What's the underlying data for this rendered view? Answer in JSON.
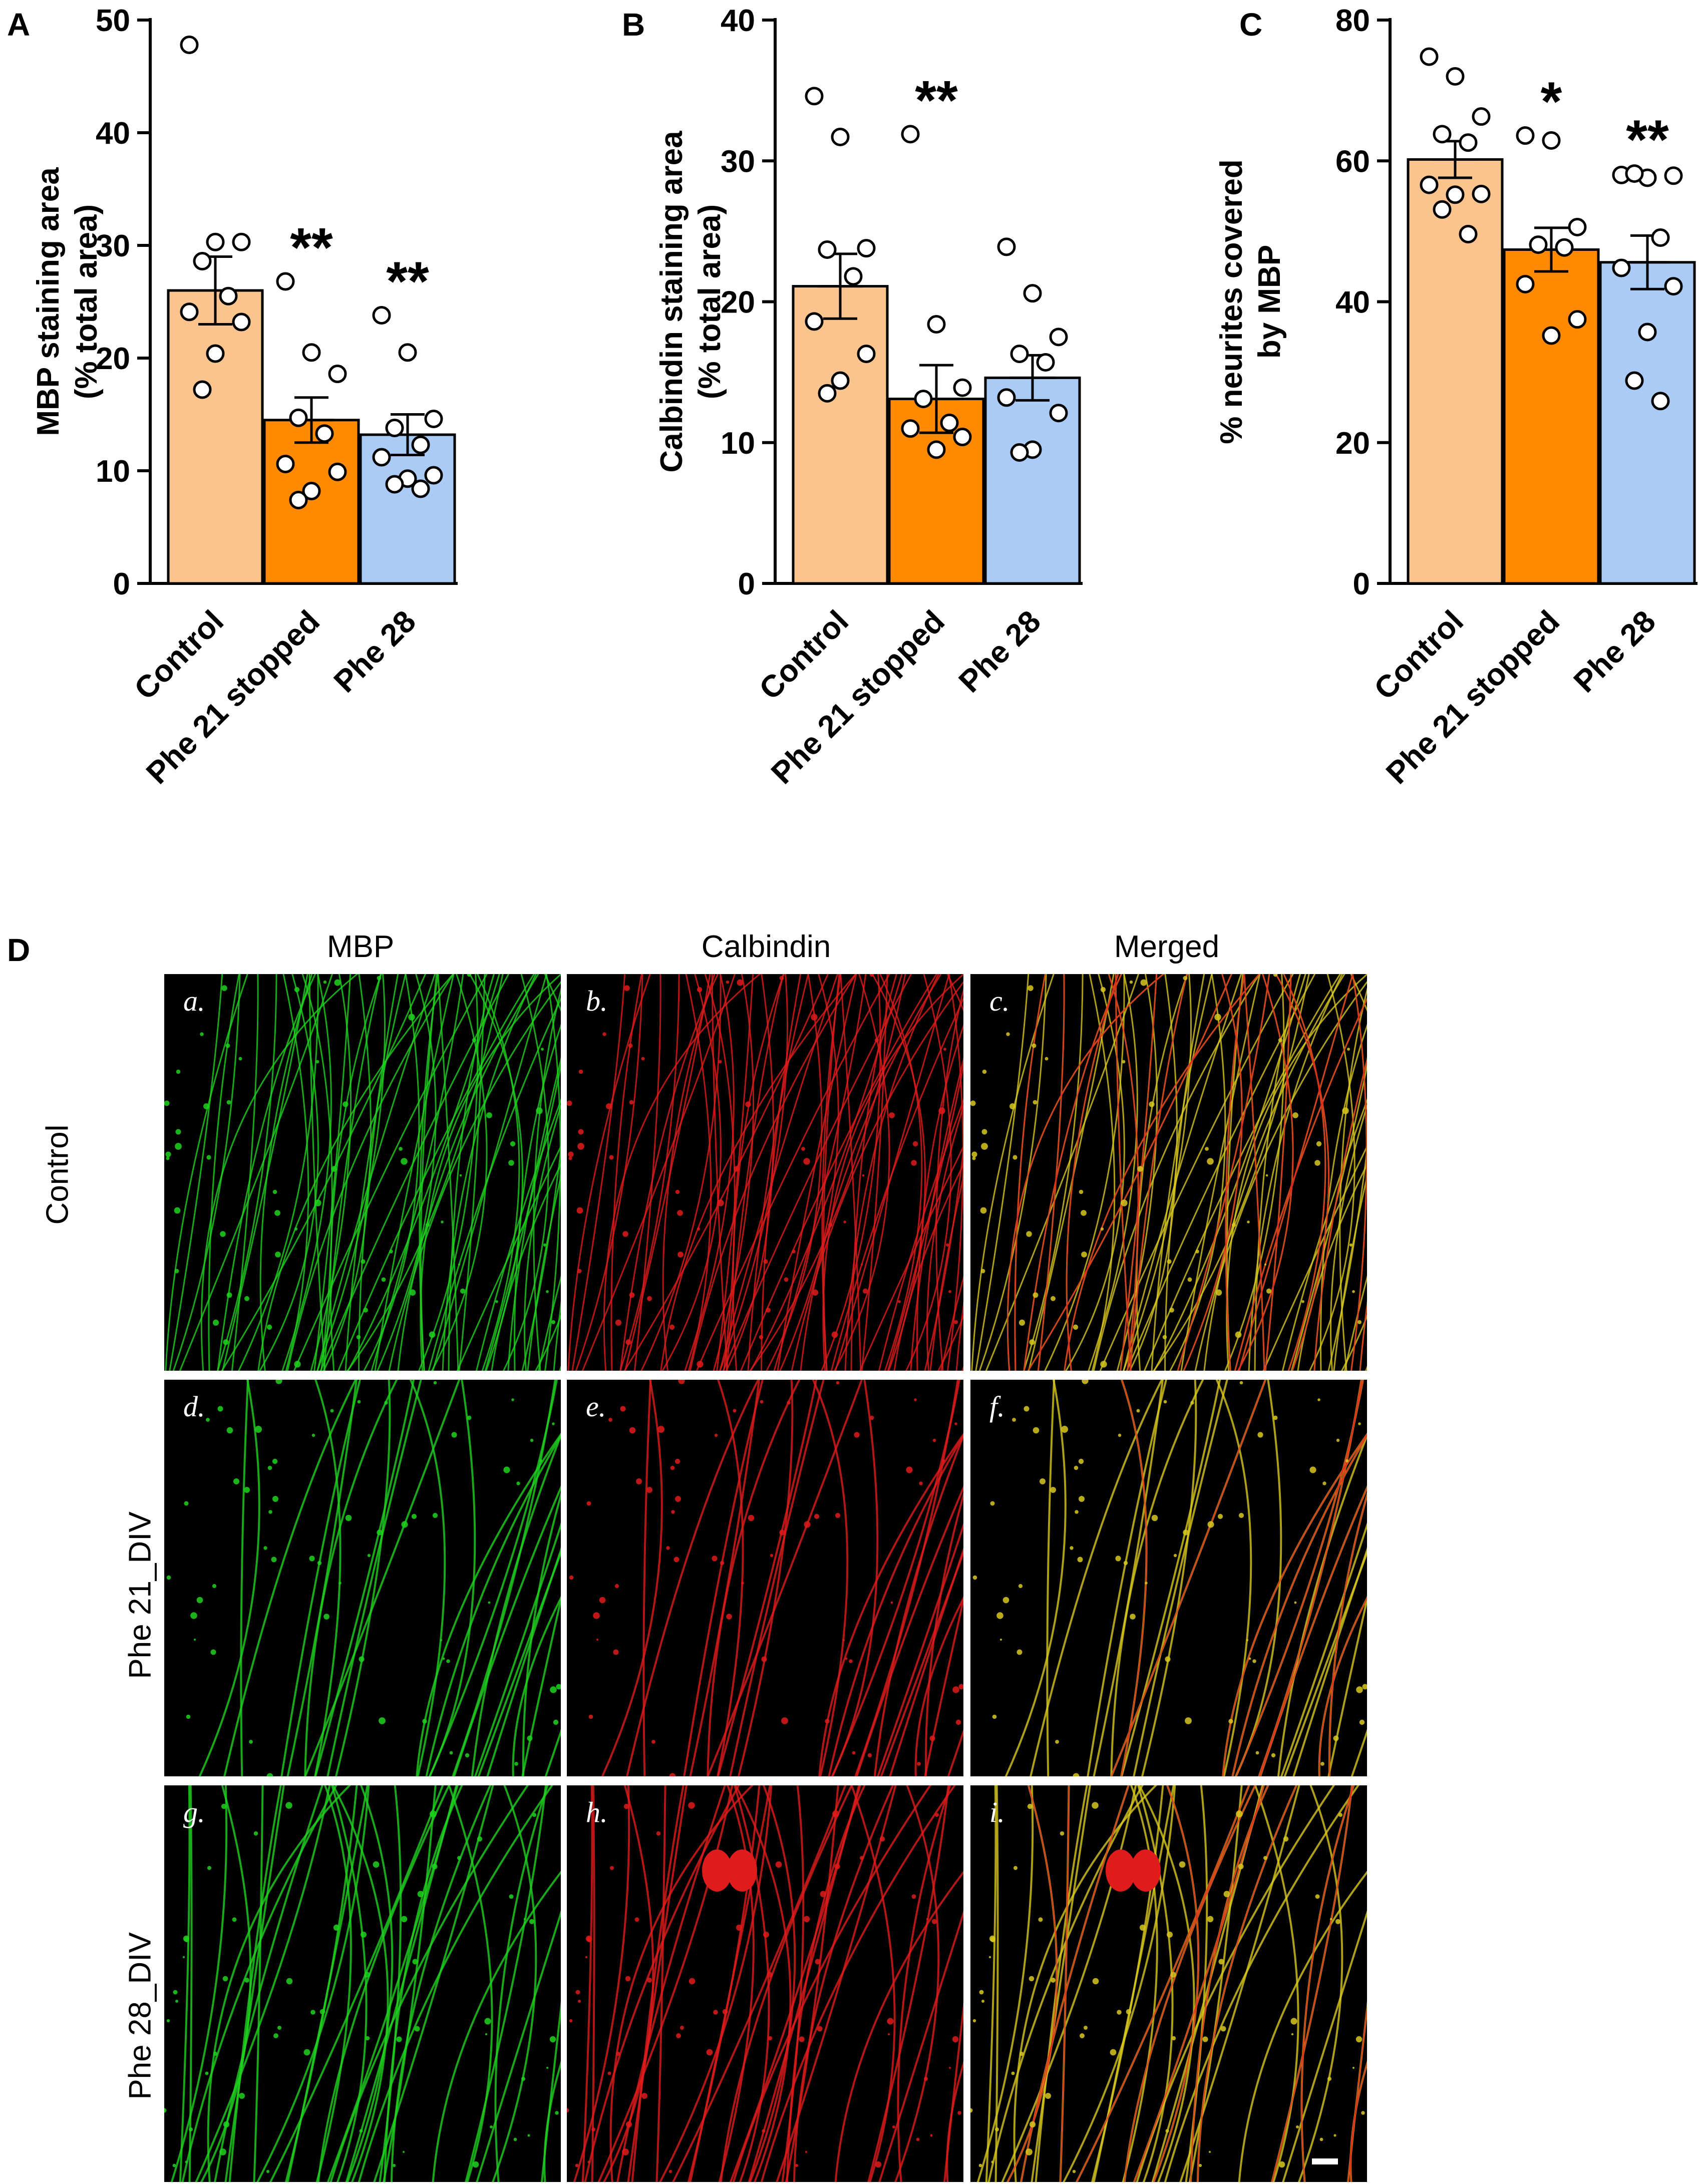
{
  "panel_letters": [
    "A",
    "B",
    "C",
    "D"
  ],
  "chart_data": [
    {
      "type": "bar",
      "panel": "A",
      "categories": [
        "Control",
        "Phe 21 stopped",
        "Phe 28"
      ],
      "values": [
        26.0,
        14.5,
        13.2
      ],
      "sem": [
        3.0,
        2.0,
        1.8
      ],
      "points": [
        [
          47.8,
          30.3,
          30.3,
          28.6,
          25.5,
          24.1,
          23.2,
          20.4,
          17.2
        ],
        [
          26.8,
          20.5,
          18.6,
          14.7,
          13.3,
          10.6,
          9.9,
          8.2,
          7.4
        ],
        [
          23.8,
          20.5,
          14.6,
          13.8,
          12.3,
          11.2,
          9.6,
          9.3,
          8.8,
          8.4
        ]
      ],
      "colors": [
        "#FAC48E",
        "#FF8A00",
        "#A9CBF5"
      ],
      "significance": [
        "",
        "**",
        "**"
      ],
      "ylabel": [
        "MBP staining area",
        "(% total area)"
      ],
      "ylim": [
        0,
        50
      ],
      "yticks": [
        0,
        10,
        20,
        30,
        40,
        50
      ]
    },
    {
      "type": "bar",
      "panel": "B",
      "categories": [
        "Control",
        "Phe 21 stopped",
        "Phe 28"
      ],
      "values": [
        21.1,
        13.1,
        14.6
      ],
      "sem": [
        2.3,
        2.4,
        1.6
      ],
      "points": [
        [
          34.6,
          31.7,
          23.8,
          23.7,
          21.8,
          18.6,
          16.3,
          14.4,
          13.5
        ],
        [
          31.9,
          18.4,
          13.9,
          13.1,
          11.4,
          11.0,
          10.4,
          9.5
        ],
        [
          23.9,
          20.6,
          17.5,
          16.3,
          15.7,
          13.2,
          12.1,
          9.5,
          9.3
        ]
      ],
      "colors": [
        "#FAC48E",
        "#FF8A00",
        "#A9CBF5"
      ],
      "significance": [
        "",
        "**",
        ""
      ],
      "ylabel": [
        "Calbindin staining area",
        "(% total area)"
      ],
      "ylim": [
        0,
        40
      ],
      "yticks": [
        0,
        10,
        20,
        30,
        40
      ]
    },
    {
      "type": "bar",
      "panel": "C",
      "categories": [
        "Control",
        "Phe 21 stopped",
        "Phe 28"
      ],
      "values": [
        60.2,
        47.4,
        45.6
      ],
      "sem": [
        2.6,
        3.1,
        3.8
      ],
      "points": [
        [
          74.8,
          72.0,
          66.3,
          63.8,
          62.6,
          56.6,
          55.3,
          55.2,
          53.1,
          49.6
        ],
        [
          63.6,
          62.9,
          50.6,
          48.1,
          47.7,
          42.5,
          37.5,
          35.2
        ],
        [
          58.0,
          57.6,
          57.9,
          58.2,
          49.1,
          44.8,
          42.2,
          35.7,
          28.8,
          25.9
        ]
      ],
      "colors": [
        "#FAC48E",
        "#FF8A00",
        "#A9CBF5"
      ],
      "significance": [
        "",
        "*",
        "**"
      ],
      "ylabel": [
        "% neurites covered",
        "by MBP"
      ],
      "ylim": [
        0,
        80
      ],
      "yticks": [
        0,
        20,
        40,
        60,
        80
      ]
    }
  ],
  "micrographs": {
    "column_headers": [
      "MBP",
      "Calbindin",
      "Merged"
    ],
    "row_headers": [
      "Control",
      "Phe 21_DIV",
      "Phe 28_DIV"
    ],
    "tiles": [
      {
        "label": "a.",
        "channel": "green",
        "density": "high"
      },
      {
        "label": "b.",
        "channel": "red",
        "density": "high"
      },
      {
        "label": "c.",
        "channel": "merged",
        "density": "high"
      },
      {
        "label": "d.",
        "channel": "green",
        "density": "low"
      },
      {
        "label": "e.",
        "channel": "red",
        "density": "low"
      },
      {
        "label": "f.",
        "channel": "merged",
        "density": "low"
      },
      {
        "label": "g.",
        "channel": "green",
        "density": "medium"
      },
      {
        "label": "h.",
        "channel": "red",
        "density": "medium"
      },
      {
        "label": "i.",
        "channel": "merged",
        "density": "medium"
      }
    ],
    "colors": {
      "green": "#1FD21F",
      "red": "#E01B1B",
      "merged": "#D8C81E"
    }
  }
}
